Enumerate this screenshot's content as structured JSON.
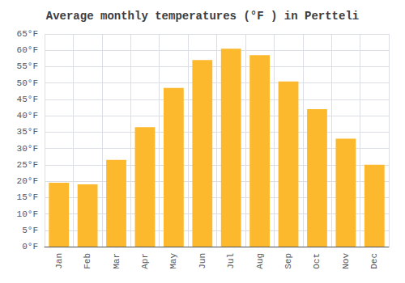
{
  "chart_data": {
    "type": "bar",
    "title": "Average monthly temperatures (°F ) in Pertteli",
    "categories": [
      "Jan",
      "Feb",
      "Mar",
      "Apr",
      "May",
      "Jun",
      "Jul",
      "Aug",
      "Sep",
      "Oct",
      "Nov",
      "Dec"
    ],
    "values": [
      19.5,
      19.0,
      26.5,
      36.5,
      48.5,
      57.0,
      60.5,
      58.5,
      50.5,
      42.0,
      33.0,
      25.0
    ],
    "color": "#FDB92E",
    "ylim": [
      0,
      65
    ],
    "yticks": [
      {
        "value": 0,
        "label": "0°F"
      },
      {
        "value": 5,
        "label": "5°F"
      },
      {
        "value": 10,
        "label": "10°F"
      },
      {
        "value": 15,
        "label": "15°F"
      },
      {
        "value": 20,
        "label": "20°F"
      },
      {
        "value": 25,
        "label": "25°F"
      },
      {
        "value": 30,
        "label": "30°F"
      },
      {
        "value": 35,
        "label": "35°F"
      },
      {
        "value": 40,
        "label": "40°F"
      },
      {
        "value": 45,
        "label": "45°F"
      },
      {
        "value": 50,
        "label": "50°F"
      },
      {
        "value": 55,
        "label": "55°F"
      },
      {
        "value": 60,
        "label": "60°F"
      },
      {
        "value": 65,
        "label": "65°F"
      }
    ],
    "grid": true
  }
}
